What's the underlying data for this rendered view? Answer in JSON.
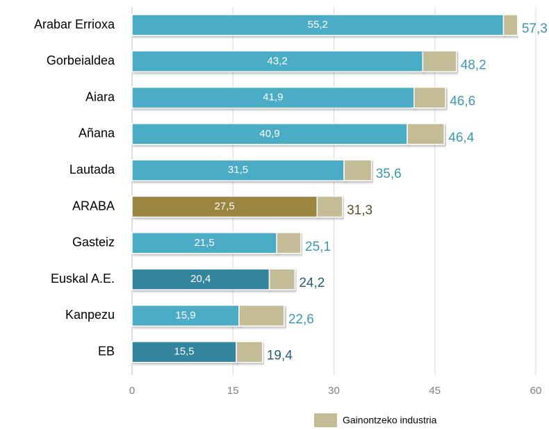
{
  "chart_data": {
    "type": "stacked_bar_horizontal",
    "categories": [
      "Arabar Errioxa",
      "Gorbeialdea",
      "Aiara",
      "Añana",
      "Lautada",
      "ARABA",
      "Gasteiz",
      "Euskal A.E.",
      "Kanpezu",
      "EB"
    ],
    "series": [
      {
        "values": [
          55.2,
          43.2,
          41.9,
          40.9,
          31.5,
          27.5,
          21.5,
          20.4,
          15.9,
          15.5
        ],
        "value_labels": [
          "55,2",
          "43,2",
          "41,9",
          "40,9",
          "31,5",
          "27,5",
          "21,5",
          "20,4",
          "15,9",
          "15,5"
        ],
        "colors": [
          "#4bacc6",
          "#4bacc6",
          "#4bacc6",
          "#4bacc6",
          "#4bacc6",
          "#9c8540",
          "#4bacc6",
          "#31859c",
          "#4bacc6",
          "#31859c"
        ]
      },
      {
        "name": "Gainontzeko industria",
        "color": "#c4bc96",
        "values": [
          2.1,
          5.0,
          4.7,
          5.5,
          4.1,
          3.8,
          3.6,
          3.8,
          6.7,
          3.9
        ]
      }
    ],
    "totals": [
      57.3,
      48.2,
      46.6,
      46.4,
      35.6,
      31.3,
      25.1,
      24.2,
      22.6,
      19.4
    ],
    "totals_labels": [
      "57,3",
      "48,2",
      "46,6",
      "46,4",
      "35,6",
      "31,3",
      "25,1",
      "24,2",
      "22,6",
      "19,4"
    ],
    "xlim": [
      0,
      60
    ],
    "xticks": [
      0,
      15,
      30,
      45,
      60
    ],
    "grid": true,
    "legend": "bottom"
  }
}
